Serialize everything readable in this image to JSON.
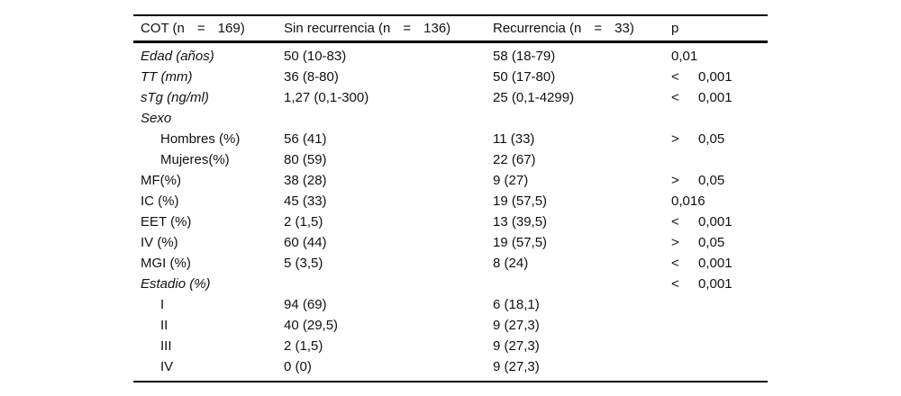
{
  "table": {
    "header": {
      "col1": {
        "text": "COT (n",
        "eq": "=",
        "n": "169)"
      },
      "col2": {
        "text": "Sin recurrencia (n",
        "eq": "=",
        "n": "136)"
      },
      "col3": {
        "text": "Recurrencia (n",
        "eq": "=",
        "n": "33)"
      },
      "col4": "p"
    },
    "rows": [
      {
        "label": "Edad (años)",
        "sin": "50 (10-83)",
        "rec": "58 (18-79)",
        "p_op": "",
        "p_val": "0,01"
      },
      {
        "label": "TT (mm)",
        "sin": "36 (8-80)",
        "rec": "50 (17-80)",
        "p_op": "<",
        "p_val": "0,001"
      },
      {
        "label": "sTg (ng/ml)",
        "sin": "1,27 (0,1-300)",
        "rec": "25 (0,1-4299)",
        "p_op": "<",
        "p_val": "0,001"
      },
      {
        "label": "Sexo",
        "sin": "",
        "rec": "",
        "p_op": "",
        "p_val": ""
      },
      {
        "label": "Hombres (%)",
        "sin": "56 (41)",
        "rec": "11 (33)",
        "p_op": ">",
        "p_val": "0,05"
      },
      {
        "label": "Mujeres(%)",
        "sin": "80 (59)",
        "rec": "22 (67)",
        "p_op": "",
        "p_val": ""
      },
      {
        "label": "MF(%)",
        "sin": "38 (28)",
        "rec": "9 (27)",
        "p_op": ">",
        "p_val": "0,05"
      },
      {
        "label": "IC (%)",
        "sin": "45 (33)",
        "rec": "19 (57,5)",
        "p_op": "",
        "p_val": "0,016"
      },
      {
        "label": "EET (%)",
        "sin": "2 (1,5)",
        "rec": "13 (39,5)",
        "p_op": "<",
        "p_val": "0,001"
      },
      {
        "label": "IV (%)",
        "sin": "60 (44)",
        "rec": "19 (57,5)",
        "p_op": ">",
        "p_val": "0,05"
      },
      {
        "label": "MGI (%)",
        "sin": "5 (3,5)",
        "rec": "8 (24)",
        "p_op": "<",
        "p_val": "0,001"
      },
      {
        "label": "Estadio (%)",
        "sin": "",
        "rec": "",
        "p_op": "<",
        "p_val": "0,001"
      },
      {
        "label": "I",
        "sin": "94 (69)",
        "rec": "6 (18,1)",
        "p_op": "",
        "p_val": ""
      },
      {
        "label": "II",
        "sin": "40 (29,5)",
        "rec": "9 (27,3)",
        "p_op": "",
        "p_val": ""
      },
      {
        "label": "III",
        "sin": "2 (1,5)",
        "rec": "9 (27,3)",
        "p_op": "",
        "p_val": ""
      },
      {
        "label": "IV",
        "sin": "0 (0)",
        "rec": "9 (27,3)",
        "p_op": "",
        "p_val": ""
      }
    ]
  }
}
